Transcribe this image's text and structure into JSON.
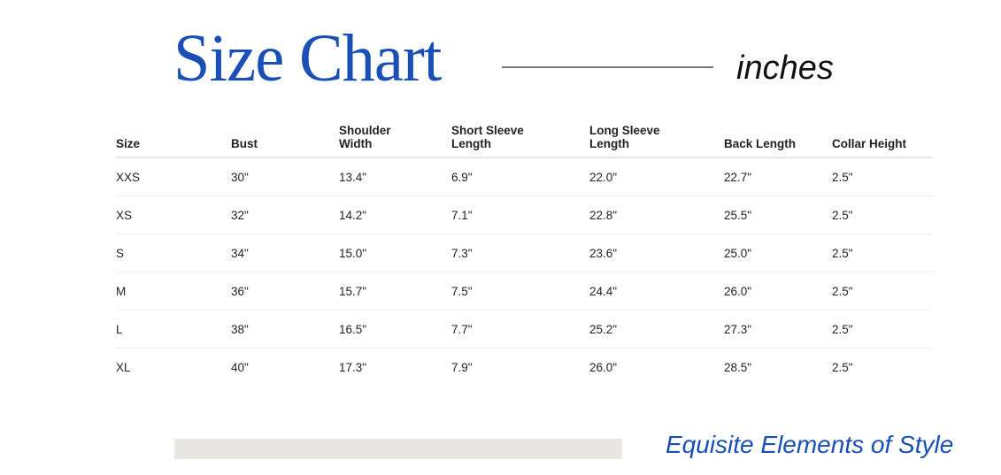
{
  "title": "Size Chart",
  "unit": "inches",
  "colors": {
    "accent": "#1a4fb5",
    "bar": "#e8e7e3"
  },
  "table": {
    "headers": [
      [
        "Size"
      ],
      [
        "Bust"
      ],
      [
        "Shoulder",
        "Width"
      ],
      [
        "Short Sleeve",
        "Length"
      ],
      [
        "Long Sleeve",
        "Length"
      ],
      [
        "Back Length"
      ],
      [
        "Collar Height"
      ]
    ],
    "rows": [
      [
        "XXS",
        "30\"",
        "13.4\"",
        "6.9\"",
        "22.0\"",
        "22.7\"",
        "2.5\""
      ],
      [
        "XS",
        "32\"",
        "14.2\"",
        "7.1\"",
        "22.8\"",
        "25.5\"",
        "2.5\""
      ],
      [
        "S",
        "34\"",
        "15.0\"",
        "7.3\"",
        "23.6\"",
        "25.0\"",
        "2.5\""
      ],
      [
        "M",
        "36\"",
        "15.7\"",
        "7.5\"",
        "24.4\"",
        "26.0\"",
        "2.5\""
      ],
      [
        "L",
        "38\"",
        "16.5\"",
        "7.7\"",
        "25.2\"",
        "27.3\"",
        "2.5\""
      ],
      [
        "XL",
        "40\"",
        "17.3\"",
        "7.9\"",
        "26.0\"",
        "28.5\"",
        "2.5\""
      ]
    ]
  },
  "tagline": "Equisite Elements of Style"
}
